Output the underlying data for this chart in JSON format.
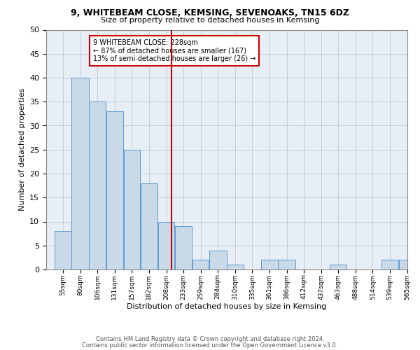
{
  "title1": "9, WHITEBEAM CLOSE, KEMSING, SEVENOAKS, TN15 6DZ",
  "title2": "Size of property relative to detached houses in Kemsing",
  "xlabel": "Distribution of detached houses by size in Kemsing",
  "ylabel": "Number of detached properties",
  "bin_labels": [
    "55sqm",
    "80sqm",
    "106sqm",
    "131sqm",
    "157sqm",
    "182sqm",
    "208sqm",
    "233sqm",
    "259sqm",
    "284sqm",
    "310sqm",
    "335sqm",
    "361sqm",
    "386sqm",
    "412sqm",
    "437sqm",
    "463sqm",
    "488sqm",
    "514sqm",
    "539sqm",
    "565sqm"
  ],
  "bin_edges": [
    55,
    80,
    106,
    131,
    157,
    182,
    208,
    233,
    259,
    284,
    310,
    335,
    361,
    386,
    412,
    437,
    463,
    488,
    514,
    539,
    565
  ],
  "values": [
    8,
    40,
    35,
    33,
    25,
    18,
    10,
    9,
    2,
    4,
    1,
    0,
    2,
    2,
    0,
    0,
    1,
    0,
    0,
    2,
    2
  ],
  "bar_facecolor": "#c9d9e8",
  "bar_edgecolor": "#5b9bd5",
  "grid_color": "#c0c8d8",
  "background_color": "#e8eef5",
  "redline_x": 228,
  "annotation_title": "9 WHITEBEAM CLOSE: 228sqm",
  "annotation_line1": "← 87% of detached houses are smaller (167)",
  "annotation_line2": "13% of semi-detached houses are larger (26) →",
  "annotation_box_edgecolor": "#cc0000",
  "redline_color": "#cc0000",
  "ylim": [
    0,
    50
  ],
  "yticks": [
    0,
    5,
    10,
    15,
    20,
    25,
    30,
    35,
    40,
    45,
    50
  ],
  "footer1": "Contains HM Land Registry data © Crown copyright and database right 2024.",
  "footer2": "Contains public sector information licensed under the Open Government Licence v3.0."
}
